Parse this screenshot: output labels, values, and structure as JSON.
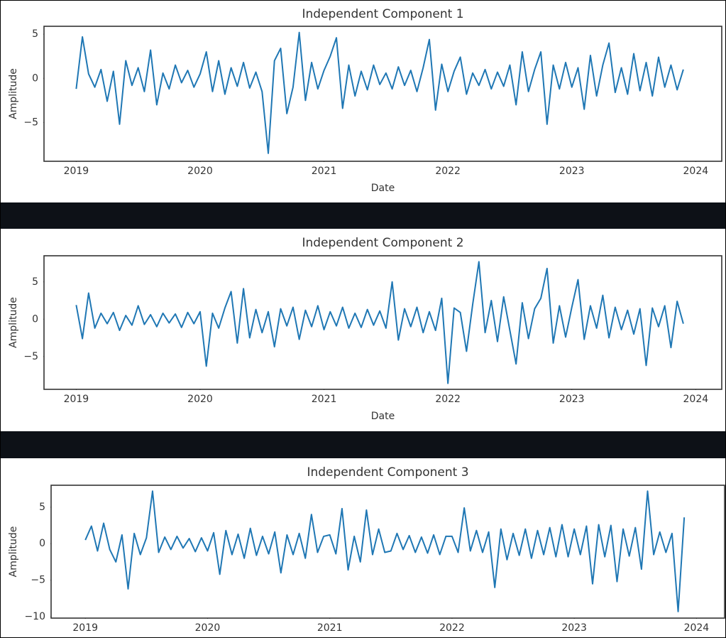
{
  "chart_data": [
    {
      "type": "line",
      "title": "Independent Component 1",
      "xlabel": "Date",
      "ylabel": "Amplitude",
      "color": "#1f77b4",
      "grid": false,
      "x": [
        2019.0,
        2019.05,
        2019.1,
        2019.15,
        2019.2,
        2019.25,
        2019.3,
        2019.35,
        2019.4,
        2019.45,
        2019.5,
        2019.55,
        2019.6,
        2019.65,
        2019.7,
        2019.75,
        2019.8,
        2019.85,
        2019.9,
        2019.95,
        2020.0,
        2020.05,
        2020.1,
        2020.15,
        2020.2,
        2020.25,
        2020.3,
        2020.35,
        2020.4,
        2020.45,
        2020.5,
        2020.55,
        2020.6,
        2020.65,
        2020.7,
        2020.75,
        2020.8,
        2020.85,
        2020.9,
        2020.95,
        2021.0,
        2021.05,
        2021.1,
        2021.15,
        2021.2,
        2021.25,
        2021.3,
        2021.35,
        2021.4,
        2021.45,
        2021.5,
        2021.55,
        2021.6,
        2021.65,
        2021.7,
        2021.75,
        2021.8,
        2021.85,
        2021.9,
        2021.95,
        2022.0,
        2022.05,
        2022.1,
        2022.15,
        2022.2,
        2022.25,
        2022.3,
        2022.35,
        2022.4,
        2022.45,
        2022.5,
        2022.55,
        2022.6,
        2022.65,
        2022.7,
        2022.75,
        2022.8,
        2022.85,
        2022.9,
        2022.95,
        2023.0,
        2023.05,
        2023.1,
        2023.15,
        2023.2,
        2023.25,
        2023.3,
        2023.35,
        2023.4,
        2023.45,
        2023.5,
        2023.55,
        2023.6,
        2023.65,
        2023.7,
        2023.75,
        2023.8,
        2023.85,
        2023.9
      ],
      "values": [
        -1.2,
        4.7,
        0.5,
        -1.0,
        1.0,
        -2.6,
        0.8,
        -5.2,
        2.0,
        -0.8,
        1.2,
        -1.5,
        3.2,
        -3.0,
        0.6,
        -1.2,
        1.5,
        -0.5,
        0.9,
        -1.0,
        0.5,
        3.0,
        -1.5,
        2.0,
        -1.8,
        1.2,
        -0.9,
        1.8,
        -1.1,
        0.7,
        -1.5,
        -8.5,
        2.0,
        3.4,
        -4.0,
        -1.0,
        5.2,
        -2.5,
        1.8,
        -1.2,
        0.9,
        2.5,
        4.6,
        -3.4,
        1.5,
        -2.0,
        0.8,
        -1.3,
        1.5,
        -0.7,
        0.6,
        -1.2,
        1.3,
        -0.8,
        0.9,
        -1.5,
        1.2,
        4.4,
        -3.6,
        1.6,
        -1.5,
        0.8,
        2.4,
        -1.8,
        0.6,
        -0.8,
        1.0,
        -1.2,
        0.7,
        -0.9,
        1.5,
        -3.0,
        3.0,
        -1.5,
        1.0,
        3.0,
        -5.2,
        1.5,
        -1.2,
        1.8,
        -1.0,
        1.2,
        -3.5,
        2.6,
        -2.0,
        1.5,
        4.0,
        -1.6,
        1.2,
        -1.8,
        2.8,
        -1.4,
        1.8,
        -2.0,
        2.4,
        -1.0,
        1.5,
        -1.3,
        1.0
      ],
      "xlim": [
        2018.74,
        2024.21
      ],
      "xticks": [
        2019,
        2020,
        2021,
        2022,
        2023,
        2024
      ],
      "ylim": [
        -9.4,
        5.9
      ],
      "yticks": [
        {
          "value": -5,
          "label": "−5"
        },
        0,
        5
      ]
    },
    {
      "type": "line",
      "title": "Independent Component 2",
      "xlabel": "Date",
      "ylabel": "Amplitude",
      "color": "#1f77b4",
      "grid": false,
      "x": [
        2019.0,
        2019.05,
        2019.1,
        2019.15,
        2019.2,
        2019.25,
        2019.3,
        2019.35,
        2019.4,
        2019.45,
        2019.5,
        2019.55,
        2019.6,
        2019.65,
        2019.7,
        2019.75,
        2019.8,
        2019.85,
        2019.9,
        2019.95,
        2020.0,
        2020.05,
        2020.1,
        2020.15,
        2020.2,
        2020.25,
        2020.3,
        2020.35,
        2020.4,
        2020.45,
        2020.5,
        2020.55,
        2020.6,
        2020.65,
        2020.7,
        2020.75,
        2020.8,
        2020.85,
        2020.9,
        2020.95,
        2021.0,
        2021.05,
        2021.1,
        2021.15,
        2021.2,
        2021.25,
        2021.3,
        2021.35,
        2021.4,
        2021.45,
        2021.5,
        2021.55,
        2021.6,
        2021.65,
        2021.7,
        2021.75,
        2021.8,
        2021.85,
        2021.9,
        2021.95,
        2022.0,
        2022.05,
        2022.1,
        2022.15,
        2022.2,
        2022.25,
        2022.3,
        2022.35,
        2022.4,
        2022.45,
        2022.5,
        2022.55,
        2022.6,
        2022.65,
        2022.7,
        2022.75,
        2022.8,
        2022.85,
        2022.9,
        2022.95,
        2023.0,
        2023.05,
        2023.1,
        2023.15,
        2023.2,
        2023.25,
        2023.3,
        2023.35,
        2023.4,
        2023.45,
        2023.5,
        2023.55,
        2023.6,
        2023.65,
        2023.7,
        2023.75,
        2023.8,
        2023.85,
        2023.9
      ],
      "values": [
        1.9,
        -2.6,
        3.5,
        -1.2,
        0.8,
        -0.6,
        0.9,
        -1.5,
        0.5,
        -0.8,
        1.8,
        -0.7,
        0.6,
        -1.0,
        0.8,
        -0.5,
        0.7,
        -1.1,
        0.9,
        -0.6,
        1.0,
        -6.3,
        0.8,
        -1.2,
        1.5,
        3.7,
        -3.2,
        4.1,
        -2.5,
        1.3,
        -1.8,
        1.0,
        -3.7,
        1.4,
        -0.9,
        1.6,
        -2.7,
        1.2,
        -1.0,
        1.8,
        -1.4,
        1.0,
        -0.9,
        1.6,
        -1.2,
        0.8,
        -1.1,
        1.3,
        -0.8,
        1.1,
        -1.2,
        5.0,
        -2.8,
        1.4,
        -1.0,
        1.6,
        -1.8,
        1.0,
        -1.5,
        2.8,
        -8.6,
        1.5,
        0.9,
        -4.3,
        2.0,
        7.7,
        -1.8,
        2.5,
        -3.0,
        3.0,
        -1.5,
        -6.0,
        2.2,
        -2.6,
        1.4,
        2.8,
        6.8,
        -3.2,
        1.8,
        -2.4,
        1.6,
        5.3,
        -2.7,
        1.8,
        -1.2,
        3.2,
        -2.5,
        1.6,
        -1.4,
        1.2,
        -2.0,
        1.4,
        -6.2,
        1.5,
        -1.0,
        1.8,
        -3.8,
        2.4,
        -0.6
      ],
      "xlim": [
        2018.74,
        2024.21
      ],
      "xticks": [
        2019,
        2020,
        2021,
        2022,
        2023,
        2024
      ],
      "ylim": [
        -9.4,
        8.5
      ],
      "yticks": [
        {
          "value": -5,
          "label": "−5"
        },
        0,
        5
      ]
    },
    {
      "type": "line",
      "title": "Independent Component 3",
      "ylabel": "Amplitude",
      "color": "#1f77b4",
      "grid": false,
      "x": [
        2019.0,
        2019.05,
        2019.1,
        2019.15,
        2019.2,
        2019.25,
        2019.3,
        2019.35,
        2019.4,
        2019.45,
        2019.5,
        2019.55,
        2019.6,
        2019.65,
        2019.7,
        2019.75,
        2019.8,
        2019.85,
        2019.9,
        2019.95,
        2020.0,
        2020.05,
        2020.1,
        2020.15,
        2020.2,
        2020.25,
        2020.3,
        2020.35,
        2020.4,
        2020.45,
        2020.5,
        2020.55,
        2020.6,
        2020.65,
        2020.7,
        2020.75,
        2020.8,
        2020.85,
        2020.9,
        2020.95,
        2021.0,
        2021.05,
        2021.1,
        2021.15,
        2021.2,
        2021.25,
        2021.3,
        2021.35,
        2021.4,
        2021.45,
        2021.5,
        2021.55,
        2021.6,
        2021.65,
        2021.7,
        2021.75,
        2021.8,
        2021.85,
        2021.9,
        2021.95,
        2022.0,
        2022.05,
        2022.1,
        2022.15,
        2022.2,
        2022.25,
        2022.3,
        2022.35,
        2022.4,
        2022.45,
        2022.5,
        2022.55,
        2022.6,
        2022.65,
        2022.7,
        2022.75,
        2022.8,
        2022.85,
        2022.9,
        2022.95,
        2023.0,
        2023.05,
        2023.1,
        2023.15,
        2023.2,
        2023.25,
        2023.3,
        2023.35,
        2023.4,
        2023.45,
        2023.5,
        2023.55,
        2023.6,
        2023.65,
        2023.7,
        2023.75,
        2023.8,
        2023.85,
        2023.9
      ],
      "values": [
        0.5,
        2.4,
        -1.0,
        2.8,
        -0.8,
        -2.5,
        1.2,
        -6.2,
        1.4,
        -1.5,
        0.8,
        7.2,
        -1.2,
        0.9,
        -0.8,
        1.0,
        -0.6,
        0.7,
        -1.1,
        0.8,
        -1.0,
        1.5,
        -4.2,
        1.8,
        -1.5,
        1.3,
        -2.0,
        2.1,
        -1.6,
        1.0,
        -1.4,
        1.6,
        -4.0,
        1.2,
        -1.5,
        1.4,
        -2.0,
        4.0,
        -1.2,
        1.0,
        1.2,
        -1.4,
        4.8,
        -3.6,
        1.0,
        -2.5,
        4.6,
        -1.5,
        2.0,
        -1.2,
        -1.0,
        1.4,
        -0.8,
        1.1,
        -1.2,
        0.9,
        -1.3,
        1.2,
        -1.5,
        1.0,
        1.0,
        -1.2,
        4.9,
        -1.0,
        1.8,
        -1.2,
        1.6,
        -6.0,
        2.0,
        -2.2,
        1.4,
        -1.6,
        2.0,
        -2.0,
        1.8,
        -1.5,
        2.2,
        -1.8,
        2.6,
        -1.8,
        2.0,
        -1.5,
        2.4,
        -5.5,
        2.6,
        -1.8,
        2.5,
        -5.2,
        2.0,
        -1.7,
        2.2,
        -3.5,
        7.2,
        -1.5,
        1.6,
        -1.2,
        1.4,
        -9.3,
        3.6
      ],
      "xlim": [
        2018.72,
        2024.23
      ],
      "xticks": [
        2019,
        2020,
        2021,
        2022,
        2023,
        2024
      ],
      "ylim": [
        -10.2,
        8.0
      ],
      "yticks": [
        {
          "value": -10,
          "label": "−10"
        },
        {
          "value": -5,
          "label": "−5"
        },
        0,
        5
      ]
    }
  ]
}
